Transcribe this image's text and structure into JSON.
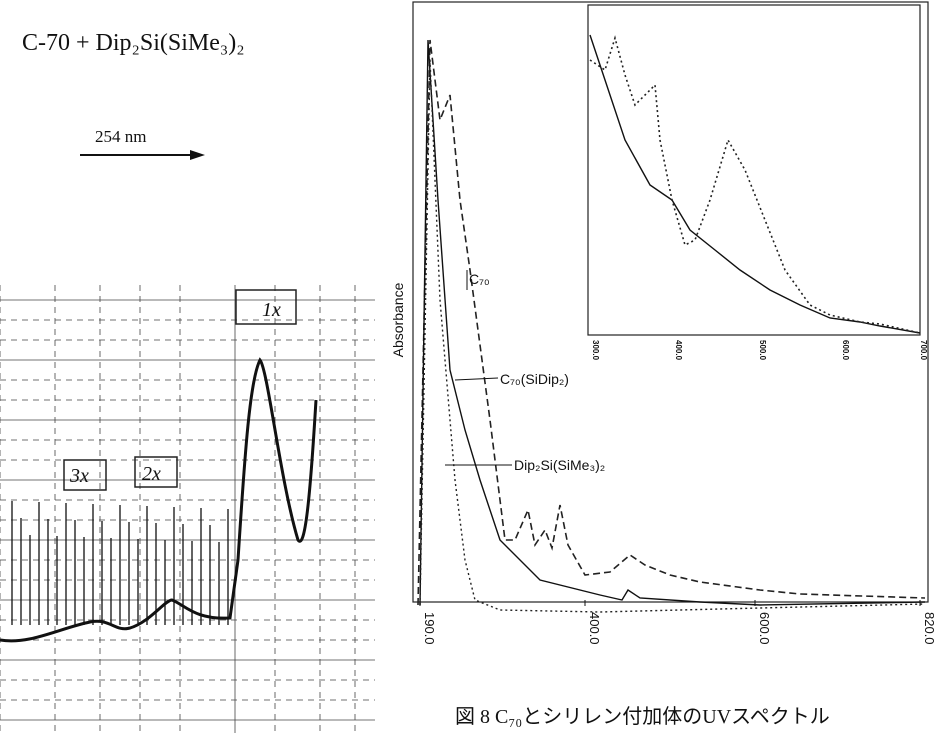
{
  "reaction": {
    "equation": "C-70  +  Dip₂Si(SiMe₃)₂",
    "condition": "254 nm"
  },
  "recorder_trace": {
    "labels": [
      "1x",
      "2x",
      "3x"
    ]
  },
  "spectrum": {
    "y_label": "Absorbance",
    "x_ticks": [
      "190.0",
      "400.0",
      "600.0",
      "820.0"
    ],
    "inset_x_ticks": [
      "300.0",
      "400.0",
      "500.0",
      "600.0",
      "700.0"
    ],
    "curve_labels": [
      "C₇₀",
      "C₇₀(SiDip₂)",
      "Dip₂Si(SiMe₃)₂"
    ]
  },
  "caption": "図 8 C₇₀とシリレン付加体のUVスペクトル"
}
